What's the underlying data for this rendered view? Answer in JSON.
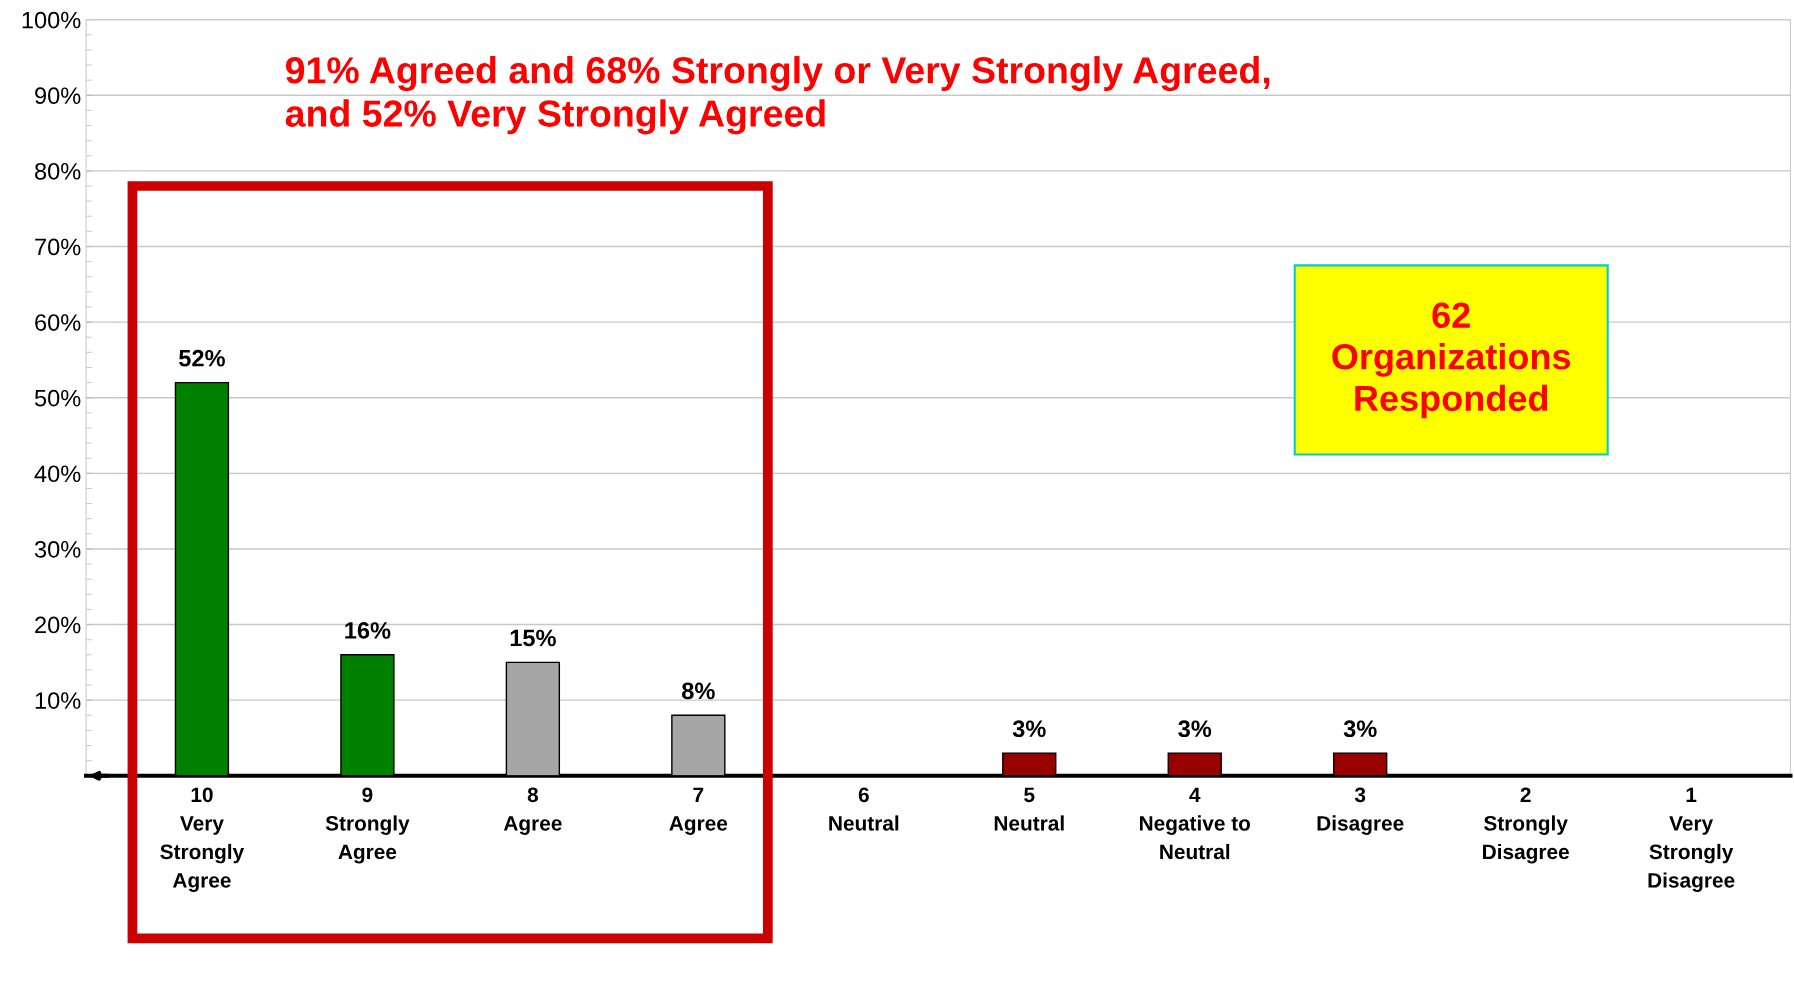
{
  "chart_data": {
    "type": "bar",
    "categories": [
      "10\nVery\nStrongly\nAgree",
      "9\nStrongly\nAgree",
      "8\nAgree",
      "7\nAgree",
      "6\nNeutral",
      "5\nNeutral",
      "4\nNegative to\nNeutral",
      "3\nDisagree",
      "2\nStrongly\nDisagree",
      "1\nVery\nStrongly\nDisagree"
    ],
    "values": [
      52,
      16,
      15,
      8,
      null,
      3,
      3,
      3,
      null,
      null
    ],
    "colors": [
      "#008000",
      "#008000",
      "#a6a6a6",
      "#a6a6a6",
      "#a6a6a6",
      "#990000",
      "#990000",
      "#990000",
      "#990000",
      "#990000"
    ],
    "value_labels": [
      "52%",
      "16%",
      "15%",
      "8%",
      null,
      "3%",
      "3%",
      "3%",
      null,
      null
    ],
    "ylim": [
      0,
      100
    ],
    "yticks": [
      {
        "value": 10,
        "label": "10%"
      },
      {
        "value": 20,
        "label": "20%"
      },
      {
        "value": 30,
        "label": "30%"
      },
      {
        "value": 40,
        "label": "40%"
      },
      {
        "value": 50,
        "label": "50%"
      },
      {
        "value": 60,
        "label": "60%"
      },
      {
        "value": 70,
        "label": "70%"
      },
      {
        "value": 80,
        "label": "80%"
      },
      {
        "value": 90,
        "label": "90%"
      },
      {
        "value": 100,
        "label": "100%"
      }
    ],
    "grid": "y",
    "annotations": [
      "91% Agreed and 68% Strongly or Very Strongly Agreed,\nand 52% Very Strongly Agreed",
      "62\nOrganizations\nResponded"
    ]
  }
}
